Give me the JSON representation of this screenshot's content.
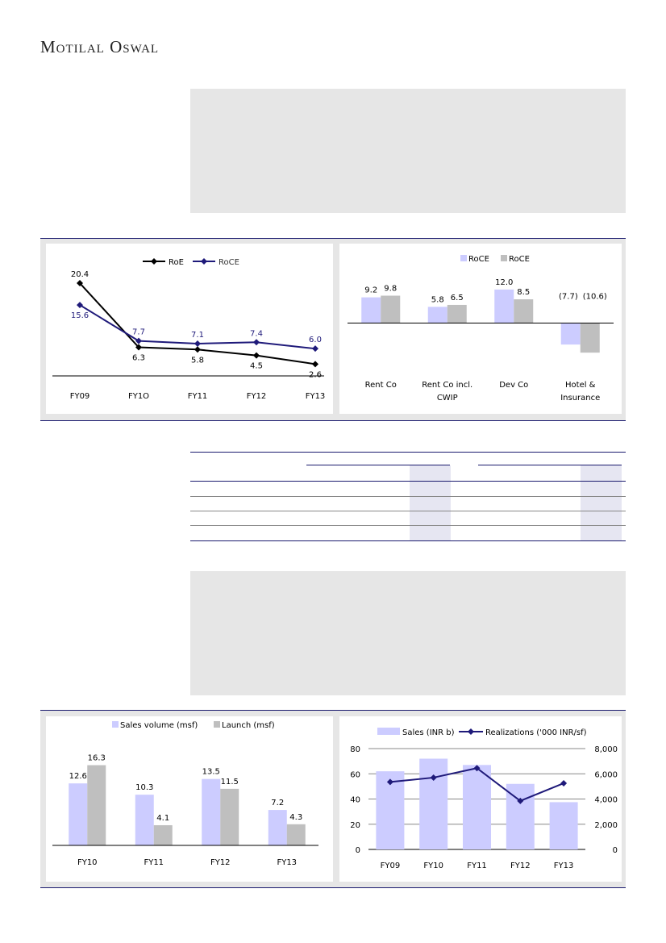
{
  "header": {
    "logo": "Motilal Oswal"
  },
  "colors": {
    "navy": "#1a1a6e",
    "lavender": "#ccccff",
    "gray": "#bfbfbf",
    "black": "#000000",
    "roce_line": "#1f1a7a"
  },
  "chart_data": [
    {
      "type": "line",
      "id": "roe-roce",
      "categories": [
        "FY09",
        "FY1O",
        "FY11",
        "FY12",
        "FY13"
      ],
      "series": [
        {
          "name": "RoE",
          "values": [
            20.4,
            6.3,
            5.8,
            4.5,
            2.6
          ],
          "color": "#000000"
        },
        {
          "name": "RoCE",
          "values": [
            15.6,
            7.7,
            7.1,
            7.4,
            6.0
          ],
          "color": "#1f1a7a"
        }
      ],
      "ylim": [
        0,
        22
      ],
      "legend": "top-center"
    },
    {
      "type": "bar",
      "id": "segment-roce",
      "categories": [
        "Rent Co",
        "Rent Co incl. CWIP",
        "Dev Co",
        "Hotel & Insurance"
      ],
      "series": [
        {
          "name": "RoCE",
          "values": [
            9.2,
            5.8,
            12.0,
            -7.7
          ],
          "labels": [
            "9.2",
            "5.8",
            "12.0",
            "(7.7)"
          ],
          "color": "#ccccff"
        },
        {
          "name": "RoCE",
          "values": [
            9.8,
            6.5,
            8.5,
            -10.6
          ],
          "labels": [
            "9.8",
            "6.5",
            "8.5",
            "(10.6)"
          ],
          "color": "#bfbfbf"
        }
      ],
      "ylim": [
        -12,
        14
      ],
      "legend": "top-center"
    },
    {
      "type": "bar",
      "id": "sales-launch",
      "categories": [
        "FY10",
        "FY11",
        "FY12",
        "FY13"
      ],
      "series": [
        {
          "name": "Sales volume (msf)",
          "values": [
            12.6,
            10.3,
            13.5,
            7.2
          ],
          "color": "#ccccff"
        },
        {
          "name": "Launch (msf)",
          "values": [
            16.3,
            4.1,
            11.5,
            4.3
          ],
          "color": "#bfbfbf"
        }
      ],
      "ylim": [
        0,
        20
      ],
      "legend": "top-center"
    },
    {
      "type": "bar+line",
      "id": "sales-realization",
      "categories": [
        "FY09",
        "FY10",
        "FY11",
        "FY12",
        "FY13"
      ],
      "series": [
        {
          "name": "Sales (INR b)",
          "values": [
            62,
            72,
            67,
            52,
            37.5
          ],
          "axis": "left",
          "color": "#ccccff"
        },
        {
          "name": "Realizations ('000 INR/sf)",
          "values": [
            5350,
            5700,
            6450,
            3850,
            5250
          ],
          "axis": "right",
          "color": "#1f1a7a"
        }
      ],
      "ylim": [
        0,
        80
      ],
      "yticks": [
        "0",
        "20",
        "40",
        "60",
        "80"
      ],
      "y2lim": [
        0,
        8000
      ],
      "y2ticks": [
        "0",
        "2,000",
        "4,000",
        "6,000",
        "8,000"
      ],
      "grid": true,
      "legend": "top-center"
    }
  ]
}
